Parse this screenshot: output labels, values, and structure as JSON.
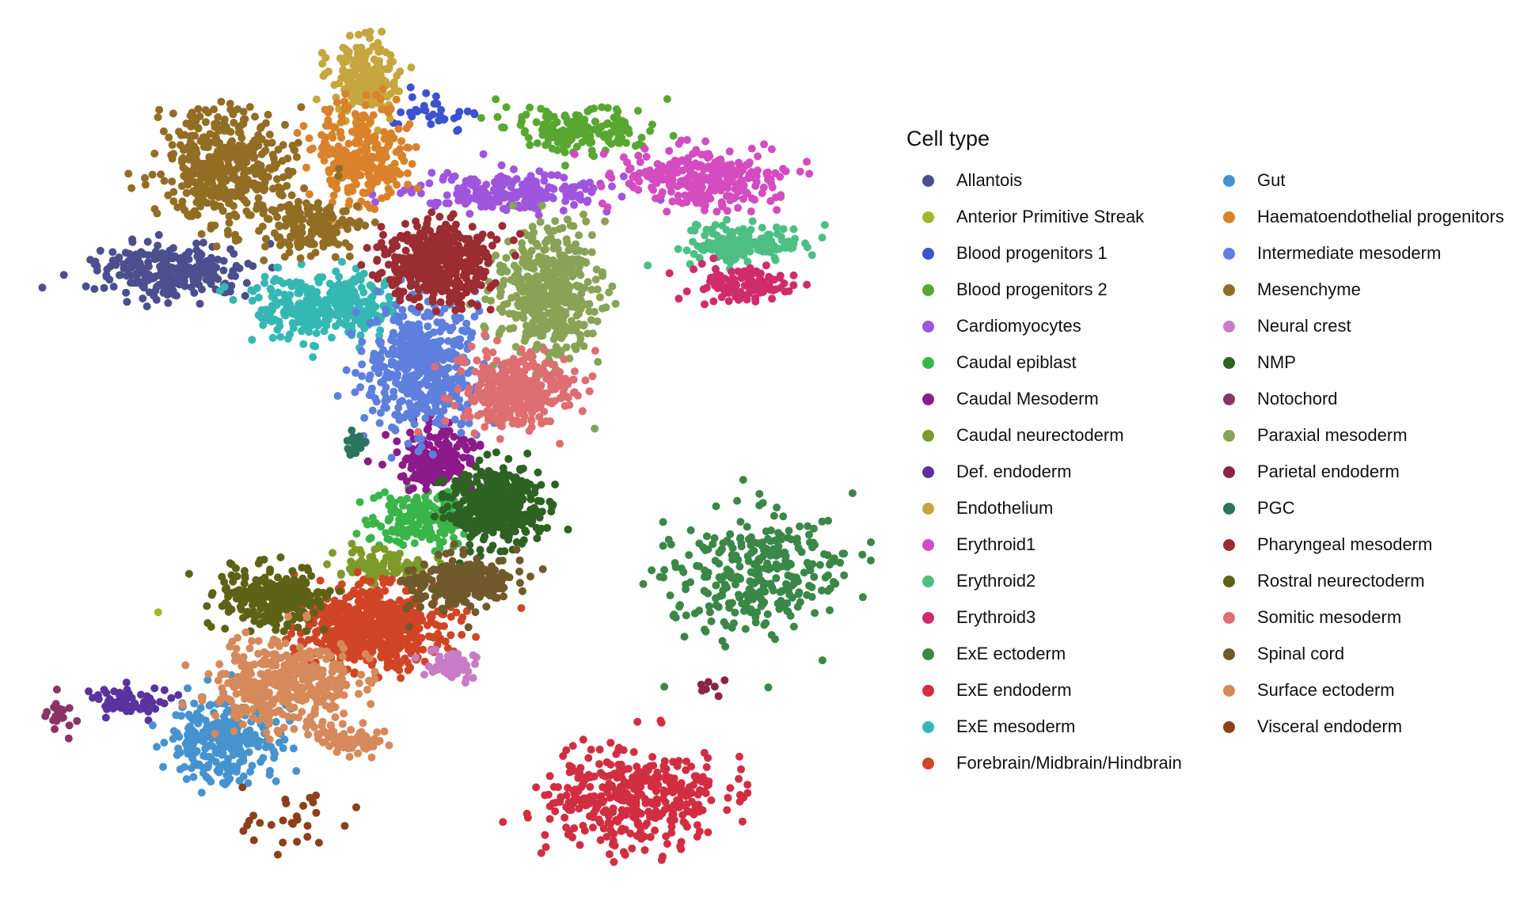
{
  "chart_data": {
    "type": "scatter",
    "title": "",
    "xlabel": "",
    "ylabel": "",
    "grid": false,
    "axes_visible": false,
    "legend": {
      "title": "Cell type",
      "placement": "right",
      "columns": 2
    },
    "series": [
      {
        "name": "Allantois",
        "color": "#4b4f8e",
        "clusters": [
          {
            "x": 215,
            "y": 343,
            "sx": 58,
            "sy": 22,
            "n": 260
          }
        ]
      },
      {
        "name": "Anterior Primitive Streak",
        "color": "#a3b72b",
        "clusters": [
          {
            "x": 197,
            "y": 772,
            "sx": 2,
            "sy": 2,
            "n": 1
          }
        ]
      },
      {
        "name": "Blood progenitors 1",
        "color": "#3d52cf",
        "clusters": [
          {
            "x": 550,
            "y": 143,
            "sx": 38,
            "sy": 12,
            "n": 32
          }
        ]
      },
      {
        "name": "Blood progenitors 2",
        "color": "#59a731",
        "clusters": [
          {
            "x": 735,
            "y": 162,
            "sx": 60,
            "sy": 18,
            "n": 170
          }
        ]
      },
      {
        "name": "Cardiomyocytes",
        "color": "#9f55de",
        "clusters": [
          {
            "x": 645,
            "y": 243,
            "sx": 75,
            "sy": 15,
            "n": 230
          }
        ]
      },
      {
        "name": "Caudal epiblast",
        "color": "#3ab54a",
        "clusters": [
          {
            "x": 530,
            "y": 655,
            "sx": 38,
            "sy": 22,
            "n": 200
          }
        ]
      },
      {
        "name": "Caudal Mesoderm",
        "color": "#8c1a8a",
        "clusters": [
          {
            "x": 555,
            "y": 580,
            "sx": 30,
            "sy": 22,
            "n": 190
          }
        ]
      },
      {
        "name": "Caudal neurectoderm",
        "color": "#7e9a2a",
        "clusters": [
          {
            "x": 480,
            "y": 715,
            "sx": 35,
            "sy": 12,
            "n": 90
          }
        ]
      },
      {
        "name": "Def. endoderm",
        "color": "#5a33a0",
        "clusters": [
          {
            "x": 160,
            "y": 885,
            "sx": 30,
            "sy": 12,
            "n": 60
          }
        ]
      },
      {
        "name": "Endothelium",
        "color": "#c6a63f",
        "clusters": [
          {
            "x": 460,
            "y": 95,
            "sx": 25,
            "sy": 30,
            "n": 200
          }
        ]
      },
      {
        "name": "Erythroid1",
        "color": "#d44cc0",
        "clusters": [
          {
            "x": 885,
            "y": 225,
            "sx": 60,
            "sy": 25,
            "n": 280
          }
        ]
      },
      {
        "name": "Erythroid2",
        "color": "#4dbf85",
        "clusters": [
          {
            "x": 940,
            "y": 310,
            "sx": 45,
            "sy": 15,
            "n": 180
          }
        ]
      },
      {
        "name": "Erythroid3",
        "color": "#d02c6b",
        "clusters": [
          {
            "x": 935,
            "y": 360,
            "sx": 40,
            "sy": 14,
            "n": 110
          }
        ]
      },
      {
        "name": "ExE ectoderm",
        "color": "#3b8748",
        "clusters": [
          {
            "x": 950,
            "y": 725,
            "sx": 70,
            "sy": 50,
            "n": 300
          }
        ]
      },
      {
        "name": "ExE endoderm",
        "color": "#d12e42",
        "clusters": [
          {
            "x": 800,
            "y": 1010,
            "sx": 70,
            "sy": 40,
            "n": 380
          }
        ]
      },
      {
        "name": "ExE mesoderm",
        "color": "#35b8b4",
        "clusters": [
          {
            "x": 415,
            "y": 385,
            "sx": 60,
            "sy": 25,
            "n": 330
          }
        ]
      },
      {
        "name": "Forebrain/Midbrain/Hindbrain",
        "color": "#d04525",
        "clusters": [
          {
            "x": 470,
            "y": 790,
            "sx": 55,
            "sy": 30,
            "n": 650
          }
        ]
      },
      {
        "name": "Gut",
        "color": "#4693cf",
        "clusters": [
          {
            "x": 285,
            "y": 935,
            "sx": 45,
            "sy": 35,
            "n": 280
          }
        ]
      },
      {
        "name": "Haematoendothelial progenitors",
        "color": "#d9822b",
        "clusters": [
          {
            "x": 450,
            "y": 195,
            "sx": 40,
            "sy": 40,
            "n": 270
          }
        ]
      },
      {
        "name": "Intermediate mesoderm",
        "color": "#5f7fdd",
        "clusters": [
          {
            "x": 535,
            "y": 465,
            "sx": 45,
            "sy": 50,
            "n": 480
          }
        ]
      },
      {
        "name": "Mesenchyme",
        "color": "#926d24",
        "clusters": [
          {
            "x": 285,
            "y": 210,
            "sx": 50,
            "sy": 45,
            "n": 430
          },
          {
            "x": 395,
            "y": 285,
            "sx": 40,
            "sy": 20,
            "n": 160
          }
        ]
      },
      {
        "name": "Neural crest",
        "color": "#c77cc5",
        "clusters": [
          {
            "x": 570,
            "y": 840,
            "sx": 18,
            "sy": 12,
            "n": 60
          }
        ]
      },
      {
        "name": "NMP",
        "color": "#2e6223",
        "clusters": [
          {
            "x": 625,
            "y": 640,
            "sx": 35,
            "sy": 30,
            "n": 420
          }
        ]
      },
      {
        "name": "Notochord",
        "color": "#8c3366",
        "clusters": [
          {
            "x": 75,
            "y": 900,
            "sx": 10,
            "sy": 15,
            "n": 22
          }
        ]
      },
      {
        "name": "Paraxial mesoderm",
        "color": "#88a356",
        "clusters": [
          {
            "x": 690,
            "y": 370,
            "sx": 40,
            "sy": 50,
            "n": 480
          }
        ]
      },
      {
        "name": "Parietal endoderm",
        "color": "#8c2443",
        "clusters": [
          {
            "x": 900,
            "y": 870,
            "sx": 12,
            "sy": 10,
            "n": 7
          }
        ]
      },
      {
        "name": "PGC",
        "color": "#2a7560",
        "clusters": [
          {
            "x": 450,
            "y": 560,
            "sx": 8,
            "sy": 8,
            "n": 22
          }
        ]
      },
      {
        "name": "Pharyngeal mesoderm",
        "color": "#9b2c31",
        "clusters": [
          {
            "x": 555,
            "y": 330,
            "sx": 42,
            "sy": 32,
            "n": 460
          }
        ]
      },
      {
        "name": "Rostral neurectoderm",
        "color": "#5e6216",
        "clusters": [
          {
            "x": 345,
            "y": 755,
            "sx": 40,
            "sy": 25,
            "n": 260
          }
        ]
      },
      {
        "name": "Somitic mesoderm",
        "color": "#de6e71",
        "clusters": [
          {
            "x": 650,
            "y": 495,
            "sx": 45,
            "sy": 30,
            "n": 330
          }
        ]
      },
      {
        "name": "Spinal cord",
        "color": "#70592a",
        "clusters": [
          {
            "x": 580,
            "y": 735,
            "sx": 40,
            "sy": 20,
            "n": 260
          }
        ]
      },
      {
        "name": "Surface ectoderm",
        "color": "#d6895a",
        "clusters": [
          {
            "x": 360,
            "y": 865,
            "sx": 55,
            "sy": 35,
            "n": 380
          },
          {
            "x": 450,
            "y": 935,
            "sx": 30,
            "sy": 10,
            "n": 70
          }
        ]
      },
      {
        "name": "Visceral endoderm",
        "color": "#8d4019",
        "clusters": [
          {
            "x": 380,
            "y": 1030,
            "sx": 55,
            "sy": 25,
            "n": 28
          }
        ]
      }
    ]
  }
}
